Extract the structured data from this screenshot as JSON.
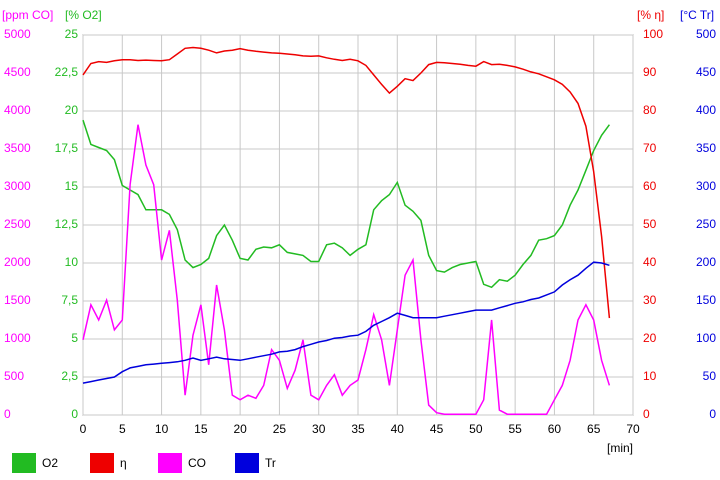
{
  "chart_data": {
    "type": "line",
    "xlabel": "[min]",
    "xlim": [
      0,
      70
    ],
    "xticks": [
      0,
      5,
      10,
      15,
      20,
      25,
      30,
      35,
      40,
      45,
      50,
      55,
      60,
      65,
      70
    ],
    "grid": true,
    "legend": "bottom-left",
    "y_axes": [
      {
        "id": "y",
        "label": "[ppm CO]",
        "position": "left-outer",
        "color": "#ff00ff",
        "lim": [
          0,
          5000
        ],
        "ticks": [
          0,
          500,
          1000,
          1500,
          2000,
          2500,
          3000,
          3500,
          4000,
          4500,
          5000
        ]
      },
      {
        "id": "y2",
        "label": "[% O2]",
        "position": "left-inner",
        "color": "#22bb22",
        "lim": [
          0,
          25
        ],
        "ticks": [
          0,
          {
            "value": 2.5,
            "label": "2,5"
          },
          5,
          {
            "value": 7.5,
            "label": "7,5"
          },
          10,
          {
            "value": 12.5,
            "label": "12,5"
          },
          15,
          {
            "value": 17.5,
            "label": "17,5"
          },
          20,
          {
            "value": 22.5,
            "label": "22,5"
          },
          25
        ]
      },
      {
        "id": "y3",
        "label": "[% η]",
        "position": "right-inner",
        "color": "#ee0000",
        "lim": [
          0,
          100
        ],
        "ticks": [
          0,
          10,
          20,
          30,
          40,
          50,
          60,
          70,
          80,
          90,
          100
        ]
      },
      {
        "id": "y4",
        "label": "[°C Tr]",
        "position": "right-outer",
        "color": "#0000dd",
        "lim": [
          0,
          500
        ],
        "ticks": [
          0,
          50,
          100,
          150,
          200,
          250,
          300,
          350,
          400,
          450,
          500
        ]
      }
    ],
    "x": [
      0,
      1,
      2,
      3,
      4,
      5,
      6,
      7,
      8,
      9,
      10,
      11,
      12,
      13,
      14,
      15,
      16,
      17,
      18,
      19,
      20,
      21,
      22,
      23,
      24,
      25,
      26,
      27,
      28,
      29,
      30,
      31,
      32,
      33,
      34,
      35,
      36,
      37,
      38,
      39,
      40,
      41,
      42,
      43,
      44,
      45,
      46,
      47,
      48,
      49,
      50,
      51,
      52,
      53,
      54,
      55,
      56,
      57,
      58,
      59,
      60,
      61,
      62,
      63,
      64,
      65,
      66,
      67
    ],
    "series": [
      {
        "name": "O2",
        "color": "#22bb22",
        "axis": "y2",
        "values": [
          19.4,
          17.8,
          17.6,
          17.4,
          16.8,
          15.1,
          14.8,
          14.5,
          13.5,
          13.5,
          13.5,
          13.2,
          12.2,
          10.2,
          9.7,
          9.9,
          10.3,
          11.8,
          12.5,
          11.5,
          10.3,
          10.2,
          10.9,
          11.05,
          11,
          11.2,
          10.7,
          10.6,
          10.5,
          10.1,
          10.1,
          11.2,
          11.3,
          11,
          10.5,
          10.9,
          11.2,
          13.5,
          14.1,
          14.5,
          15.3,
          13.8,
          13.4,
          12.8,
          10.5,
          9.5,
          9.4,
          9.7,
          9.9,
          10,
          10.1,
          8.6,
          8.4,
          8.9,
          8.8,
          9.2,
          9.9,
          10.5,
          11.5,
          11.6,
          11.8,
          12.5,
          13.8,
          14.8,
          16.1,
          17.4,
          18.4,
          19.1
        ]
      },
      {
        "name": "η",
        "color": "#ee0000",
        "axis": "y3",
        "values": [
          89.5,
          92.5,
          93,
          92.8,
          93.2,
          93.5,
          93.5,
          93.3,
          93.4,
          93.3,
          93.2,
          93.5,
          95,
          96.5,
          96.7,
          96.5,
          96,
          95.3,
          95.8,
          96,
          96.4,
          96,
          95.7,
          95.5,
          95.3,
          95.2,
          95,
          94.8,
          94.5,
          94.4,
          94.5,
          94,
          93.6,
          93.3,
          93.6,
          93.2,
          92,
          89.5,
          87,
          84.7,
          86.5,
          88.5,
          88,
          90,
          92.2,
          92.8,
          92.7,
          92.5,
          92.3,
          92,
          91.8,
          93,
          92.2,
          92.3,
          92,
          91.6,
          91,
          90.3,
          89.8,
          89,
          88.2,
          87,
          85,
          82,
          76,
          64,
          47,
          25.5
        ]
      },
      {
        "name": "CO",
        "color": "#ff00ff",
        "axis": "y",
        "values": [
          990,
          1450,
          1250,
          1510,
          1120,
          1250,
          3030,
          3820,
          3290,
          3030,
          2040,
          2430,
          1510,
          260,
          1050,
          1450,
          660,
          1710,
          1120,
          260,
          200,
          260,
          220,
          390,
          860,
          720,
          350,
          590,
          990,
          260,
          200,
          390,
          530,
          260,
          390,
          460,
          860,
          1320,
          990,
          390,
          1120,
          1840,
          2040,
          990,
          130,
          30,
          10,
          10,
          10,
          10,
          10,
          200,
          1250,
          65,
          10,
          10,
          10,
          10,
          10,
          10,
          200,
          390,
          720,
          1250,
          1450,
          1250,
          720,
          390
        ]
      },
      {
        "name": "Tr",
        "color": "#0000dd",
        "axis": "y4",
        "values": [
          42,
          44,
          46,
          48,
          50,
          57,
          62,
          64,
          66,
          67,
          68,
          69,
          70,
          72,
          75,
          72,
          74,
          76,
          74,
          73,
          72,
          74,
          76,
          78,
          80,
          83,
          84,
          86,
          90,
          93,
          96,
          98,
          101,
          102,
          104,
          105,
          110,
          118,
          123,
          128,
          134,
          131,
          128,
          128,
          128,
          128,
          130,
          132,
          134,
          136,
          138,
          138,
          138,
          141,
          144,
          147,
          149,
          152,
          154,
          158,
          162,
          171,
          178,
          184,
          193,
          201,
          200,
          197
        ]
      }
    ]
  }
}
